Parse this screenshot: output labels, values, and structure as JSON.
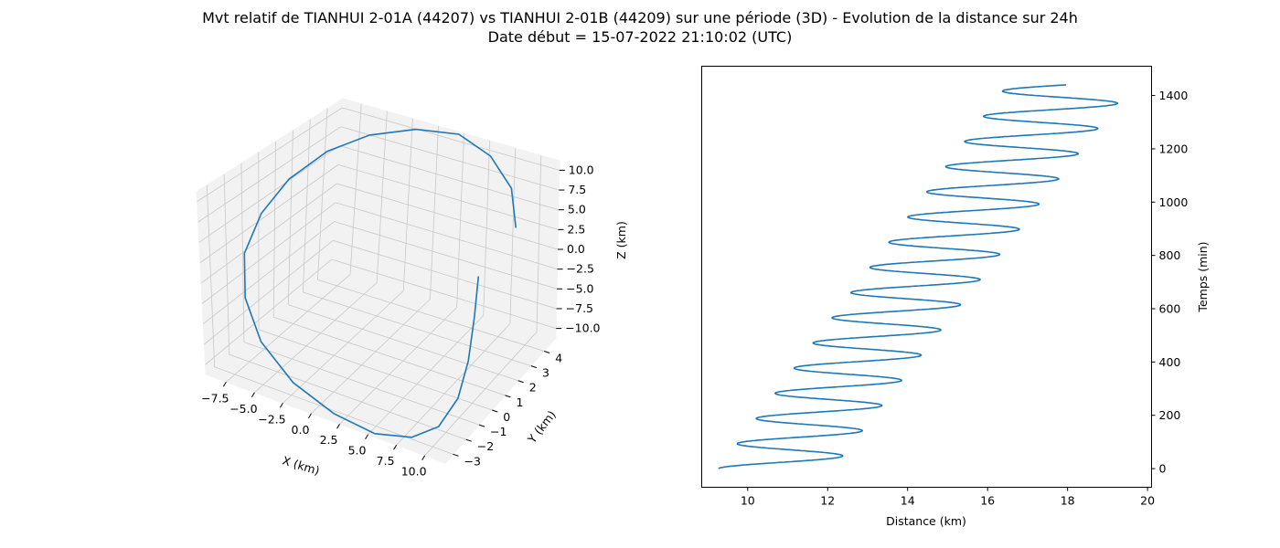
{
  "figure": {
    "title_line1": "Mvt relatif de TIANHUI 2-01A (44207) vs TIANHUI 2-01B (44209) sur une période (3D) - Evolution de la distance sur 24h",
    "title_line2": "Date début = 15-07-2022 21:10:02 (UTC)"
  },
  "colors": {
    "line": "#1f77b4",
    "pane": "#f2f2f2",
    "grid": "#c8c8c8"
  },
  "chart_data": [
    {
      "type": "line",
      "projection": "3d",
      "xlabel": "X (km)",
      "ylabel": "Y (km)",
      "zlabel": "Z (km)",
      "x_ticks": [
        "−7.5",
        "−5.0",
        "−2.5",
        "0.0",
        "2.5",
        "5.0",
        "7.5",
        "10.0"
      ],
      "y_ticks": [
        "−3",
        "−2",
        "−1",
        "0",
        "1",
        "2",
        "3",
        "4"
      ],
      "z_ticks": [
        "−10.0",
        "−7.5",
        "−5.0",
        "−2.5",
        "0.0",
        "2.5",
        "5.0",
        "7.5",
        "10.0"
      ],
      "x_range": [
        -9.3,
        11.8
      ],
      "y_range": [
        -3.6,
        4.9
      ],
      "z_range": [
        -11.2,
        11.2
      ],
      "grid": true,
      "series": [
        {
          "x": [
            10.8,
            11.3,
            11.6,
            11.4,
            10.4,
            8.5,
            5.6,
            2.0,
            -1.8,
            -5.2,
            -7.6,
            -9.0,
            -9.2,
            -8.5,
            -7.0,
            -4.6,
            -1.4,
            2.0,
            5.4,
            8.4,
            10.4
          ],
          "y": [
            -0.3,
            -1.0,
            -1.7,
            -2.3,
            -2.9,
            -3.3,
            -3.6,
            -3.6,
            -3.4,
            -2.9,
            -2.1,
            -1.1,
            0.1,
            1.3,
            2.6,
            3.6,
            4.4,
            4.9,
            4.7,
            4.0,
            2.8
          ],
          "z": [
            5.0,
            1.5,
            -2.5,
            -6.0,
            -8.8,
            -10.3,
            -10.8,
            -10.2,
            -8.7,
            -6.2,
            -3.2,
            0.2,
            3.4,
            6.3,
            8.6,
            10.2,
            11.0,
            10.9,
            9.7,
            7.9,
            5.7
          ]
        }
      ]
    },
    {
      "type": "line",
      "xlabel": "Distance (km)",
      "ylabel": "Temps (min)",
      "xlim": [
        8.85,
        20.1
      ],
      "ylim": [
        -70,
        1510
      ],
      "x_ticks": [
        10,
        12,
        14,
        16,
        18,
        20
      ],
      "y_ticks": [
        0,
        200,
        400,
        600,
        800,
        1000,
        1200,
        1400
      ],
      "y_axis_side": "right",
      "grid": false,
      "model": "distance = centre(t) + amp(t) * cos(2*pi*(t - t0)/period), t in minutes",
      "series": [
        {
          "t_start": 0,
          "t_end": 1440,
          "period": 94.5,
          "t0": 47,
          "centre_start": 10.7,
          "centre_end": 18.05,
          "amp_start": 1.43,
          "amp_end": 1.56,
          "samples": 1600
        }
      ]
    }
  ]
}
